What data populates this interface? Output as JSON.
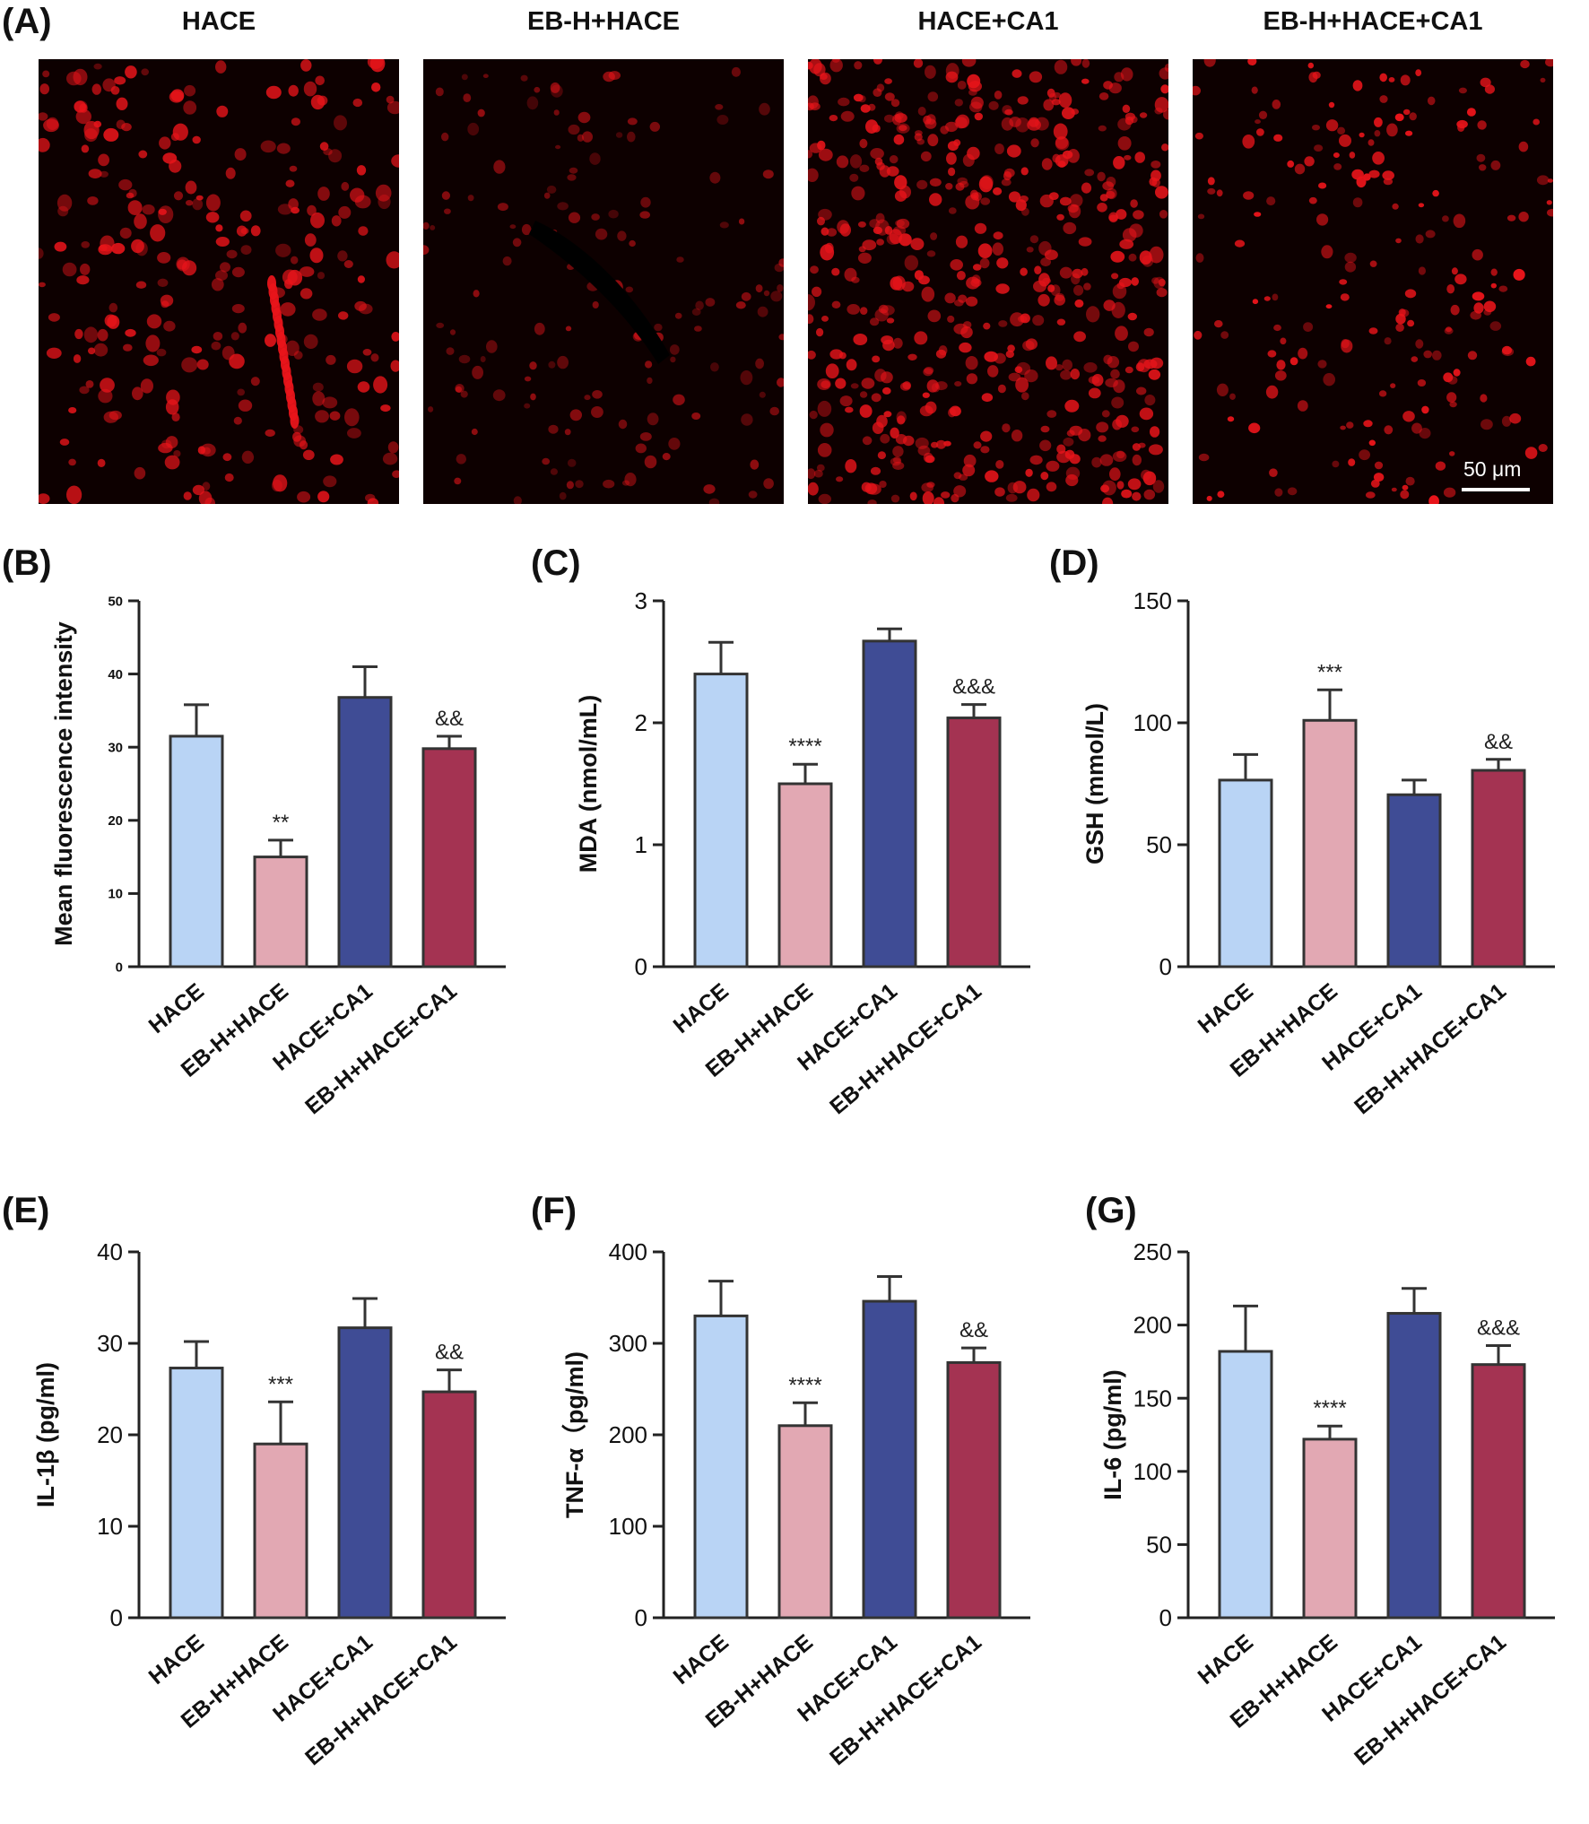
{
  "figure_labels": {
    "A": "(A)",
    "B": "(B)",
    "C": "(C)",
    "D": "(D)",
    "E": "(E)",
    "F": "(F)",
    "G": "(G)"
  },
  "micrographs": {
    "titles": [
      "HACE",
      "EB-H+HACE",
      "HACE+CA1",
      "EB-H+HACE+CA1"
    ],
    "scale_bar": "50 μm",
    "stain_color": "#e8141a"
  },
  "colors": {
    "HACE": "#b9d4f5",
    "EB-H+HACE": "#e2a8b3",
    "HACE+CA1": "#3f4c95",
    "EB-H+HACE+CA1": "#a43352",
    "bar_edge": "#333333",
    "axis": "#222222"
  },
  "chart_data": [
    {
      "id": "B",
      "type": "bar",
      "categories": [
        "HACE",
        "EB-H+HACE",
        "HACE+CA1",
        "EB-H+HACE+CA1"
      ],
      "values": [
        31.5,
        15,
        36.8,
        29.8
      ],
      "errors": [
        4.3,
        2.3,
        4.2,
        1.7
      ],
      "annotations": [
        "",
        "**",
        "",
        "&&"
      ],
      "ylabel": "Mean fluorescence intensity",
      "ylim": [
        0,
        50
      ],
      "yticks": [
        0,
        10,
        20,
        30,
        40,
        50
      ]
    },
    {
      "id": "C",
      "type": "bar",
      "categories": [
        "HACE",
        "EB-H+HACE",
        "HACE+CA1",
        "EB-H+HACE+CA1"
      ],
      "values": [
        2.4,
        1.5,
        2.67,
        2.04
      ],
      "errors": [
        0.26,
        0.16,
        0.1,
        0.11
      ],
      "annotations": [
        "",
        "****",
        "",
        "&&&"
      ],
      "ylabel": "MDA (nmol/mL)",
      "ylim": [
        0,
        3
      ],
      "yticks": [
        0,
        1,
        2,
        3
      ]
    },
    {
      "id": "D",
      "type": "bar",
      "categories": [
        "HACE",
        "EB-H+HACE",
        "HACE+CA1",
        "EB-H+HACE+CA1"
      ],
      "values": [
        76.5,
        101,
        70.5,
        80.5
      ],
      "errors": [
        10.5,
        12.5,
        6,
        4.5
      ],
      "annotations": [
        "",
        "***",
        "",
        "&&"
      ],
      "ylabel": "GSH (mmol/L)",
      "ylim": [
        0,
        150
      ],
      "yticks": [
        0,
        50,
        100,
        150
      ]
    },
    {
      "id": "E",
      "type": "bar",
      "categories": [
        "HACE",
        "EB-H+HACE",
        "HACE+CA1",
        "EB-H+HACE+CA1"
      ],
      "values": [
        27.3,
        19,
        31.7,
        24.7
      ],
      "errors": [
        2.9,
        4.6,
        3.2,
        2.4
      ],
      "annotations": [
        "",
        "***",
        "",
        "&&"
      ],
      "ylabel": "IL-1β (pg/ml)",
      "ylim": [
        0,
        40
      ],
      "yticks": [
        0,
        10,
        20,
        30,
        40
      ]
    },
    {
      "id": "F",
      "type": "bar",
      "categories": [
        "HACE",
        "EB-H+HACE",
        "HACE+CA1",
        "EB-H+HACE+CA1"
      ],
      "values": [
        330,
        210,
        346,
        279
      ],
      "errors": [
        38,
        25,
        27,
        16
      ],
      "annotations": [
        "",
        "****",
        "",
        "&&"
      ],
      "ylabel": "TNF-α（pg/ml)",
      "ylim": [
        0,
        400
      ],
      "yticks": [
        0,
        100,
        200,
        300,
        400
      ]
    },
    {
      "id": "G",
      "type": "bar",
      "categories": [
        "HACE",
        "EB-H+HACE",
        "HACE+CA1",
        "EB-H+HACE+CA1"
      ],
      "values": [
        182,
        122,
        208,
        173
      ],
      "errors": [
        31,
        9,
        17,
        13
      ],
      "annotations": [
        "",
        "****",
        "",
        "&&&"
      ],
      "ylabel": "IL-6 (pg/ml)",
      "ylim": [
        0,
        250
      ],
      "yticks": [
        0,
        50,
        100,
        150,
        200,
        250
      ]
    }
  ]
}
